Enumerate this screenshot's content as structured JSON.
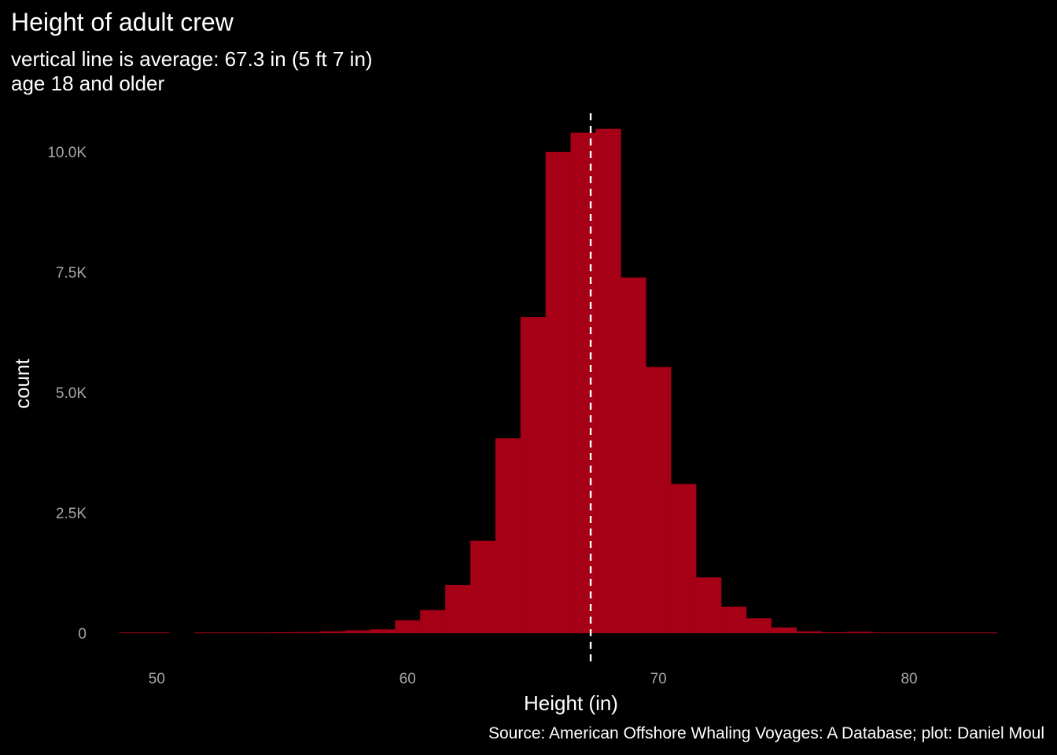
{
  "chart_data": {
    "type": "bar",
    "title": "Height of adult crew",
    "subtitle_lines": [
      "vertical line is average: 67.3 in (5 ft 7 in)",
      "age 18 and older"
    ],
    "caption": "Source: American Offshore Whaling Voyages: A Database; plot: Daniel Moul",
    "xlabel": "Height (in)",
    "ylabel": "count",
    "bin_width": 1,
    "bins": [
      {
        "x": 49,
        "count": 5
      },
      {
        "x": 50,
        "count": 5
      },
      {
        "x": 51,
        "count": 0
      },
      {
        "x": 52,
        "count": 10
      },
      {
        "x": 53,
        "count": 10
      },
      {
        "x": 54,
        "count": 15
      },
      {
        "x": 55,
        "count": 20
      },
      {
        "x": 56,
        "count": 25
      },
      {
        "x": 57,
        "count": 40
      },
      {
        "x": 58,
        "count": 60
      },
      {
        "x": 59,
        "count": 80
      },
      {
        "x": 60,
        "count": 270
      },
      {
        "x": 61,
        "count": 480
      },
      {
        "x": 62,
        "count": 1000
      },
      {
        "x": 63,
        "count": 1920
      },
      {
        "x": 64,
        "count": 4050
      },
      {
        "x": 65,
        "count": 6570
      },
      {
        "x": 66,
        "count": 10000
      },
      {
        "x": 67,
        "count": 10400
      },
      {
        "x": 68,
        "count": 10480
      },
      {
        "x": 69,
        "count": 7390
      },
      {
        "x": 70,
        "count": 5530
      },
      {
        "x": 71,
        "count": 3100
      },
      {
        "x": 72,
        "count": 1160
      },
      {
        "x": 73,
        "count": 550
      },
      {
        "x": 74,
        "count": 310
      },
      {
        "x": 75,
        "count": 120
      },
      {
        "x": 76,
        "count": 40
      },
      {
        "x": 77,
        "count": 20
      },
      {
        "x": 78,
        "count": 30
      },
      {
        "x": 79,
        "count": 10
      },
      {
        "x": 80,
        "count": 10
      },
      {
        "x": 81,
        "count": 5
      },
      {
        "x": 82,
        "count": 5
      },
      {
        "x": 83,
        "count": 5
      }
    ],
    "mean_line": {
      "x": 67.3,
      "style": "dashed",
      "color": "#ffffff"
    },
    "xlim": [
      47.7,
      84.2
    ],
    "ylim": [
      -700,
      10900
    ],
    "x_ticks": [
      {
        "value": 50,
        "label": "50"
      },
      {
        "value": 60,
        "label": "60"
      },
      {
        "value": 70,
        "label": "70"
      },
      {
        "value": 80,
        "label": "80"
      }
    ],
    "y_ticks": [
      {
        "value": 0,
        "label": "0"
      },
      {
        "value": 2500,
        "label": "2.5K"
      },
      {
        "value": 5000,
        "label": "5.0K"
      },
      {
        "value": 7500,
        "label": "7.5K"
      },
      {
        "value": 10000,
        "label": "10.0K"
      }
    ],
    "grid": false,
    "legend": "none",
    "colors": {
      "background": "#000000",
      "bar": "#a50015",
      "text": "#ffffff",
      "tick_text": "#a6a6a6"
    }
  }
}
